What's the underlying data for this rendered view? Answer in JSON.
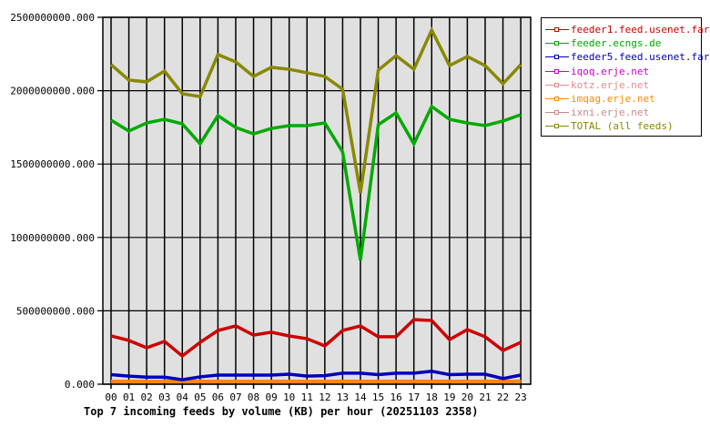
{
  "chart_data": {
    "type": "line",
    "title": "Top 7 incoming feeds by volume (KB) per hour (20251103 2358)",
    "xlabel": "",
    "ylabel": "",
    "ylim": [
      0,
      2500000000
    ],
    "yticks": [
      "0.000",
      "500000000.000",
      "1000000000.000",
      "1500000000.000",
      "2000000000.000",
      "2500000000.000"
    ],
    "ytick_values": [
      0,
      500000000,
      1000000000,
      1500000000,
      2000000000,
      2500000000
    ],
    "grid": true,
    "legend_position": "right",
    "categories": [
      "00",
      "01",
      "02",
      "03",
      "04",
      "05",
      "06",
      "07",
      "08",
      "09",
      "10",
      "11",
      "12",
      "13",
      "14",
      "15",
      "16",
      "17",
      "18",
      "19",
      "20",
      "21",
      "22",
      "23"
    ],
    "series": [
      {
        "name": "feeder1.feed.usenet.farm",
        "color": "#cc0000",
        "values": [
          329000000,
          298000000,
          248000000,
          292000000,
          192000000,
          285000000,
          366000000,
          397000000,
          335000000,
          354000000,
          329000000,
          310000000,
          261000000,
          366000000,
          397000000,
          323000000,
          323000000,
          440000000,
          434000000,
          304000000,
          372000000,
          323000000,
          230000000,
          285000000
        ]
      },
      {
        "name": "feeder.ecngs.de",
        "color": "#00aa00",
        "values": [
          1799000000,
          1725000000,
          1780000000,
          1805000000,
          1774000000,
          1638000000,
          1830000000,
          1749000000,
          1706000000,
          1743000000,
          1762000000,
          1762000000,
          1780000000,
          1582000000,
          844000000,
          1768000000,
          1849000000,
          1638000000,
          1892000000,
          1805000000,
          1780000000,
          1762000000,
          1793000000,
          1836000000
        ]
      },
      {
        "name": "feeder5.feed.usenet.farm",
        "color": "#0000bb",
        "values": [
          65000000,
          55000000,
          48000000,
          48000000,
          30000000,
          50000000,
          62000000,
          62000000,
          62000000,
          62000000,
          68000000,
          55000000,
          58000000,
          75000000,
          75000000,
          65000000,
          75000000,
          75000000,
          88000000,
          65000000,
          68000000,
          68000000,
          38000000,
          62000000
        ]
      },
      {
        "name": "iqoq.erje.net",
        "color": "#cc00cc",
        "values": [
          0,
          0,
          0,
          0,
          0,
          0,
          0,
          0,
          2000000,
          0,
          0,
          0,
          0,
          0,
          0,
          0,
          0,
          0,
          0,
          2000000,
          0,
          0,
          0,
          0
        ]
      },
      {
        "name": "kotz.erje.net",
        "color": "#ee8888",
        "values": [
          0,
          0,
          0,
          0,
          0,
          0,
          0,
          0,
          0,
          0,
          0,
          2000000,
          0,
          0,
          0,
          0,
          0,
          0,
          0,
          0,
          0,
          2000000,
          0,
          0
        ]
      },
      {
        "name": "imqag.erje.net",
        "color": "#ff8800",
        "values": [
          0,
          0,
          0,
          0,
          0,
          0,
          0,
          0,
          0,
          0,
          0,
          0,
          0,
          0,
          0,
          0,
          0,
          0,
          0,
          0,
          2000000,
          0,
          0,
          0
        ]
      },
      {
        "name": "ixni.erje.net",
        "color": "#cc8888",
        "values": [
          8000000,
          8000000,
          8000000,
          8000000,
          8000000,
          8000000,
          8000000,
          8000000,
          8000000,
          8000000,
          8000000,
          8000000,
          8000000,
          8000000,
          8000000,
          8000000,
          8000000,
          8000000,
          8000000,
          8000000,
          8000000,
          8000000,
          8000000,
          8000000
        ]
      },
      {
        "name": "TOTAL (all feeds)",
        "color": "#888800",
        "values": [
          2178000000,
          2072000000,
          2060000000,
          2134000000,
          1979000000,
          1960000000,
          2246000000,
          2196000000,
          2097000000,
          2159000000,
          2146000000,
          2122000000,
          2097000000,
          2010000000,
          1303000000,
          2140000000,
          2239000000,
          2146000000,
          2413000000,
          2171000000,
          2233000000,
          2171000000,
          2047000000,
          2178000000
        ]
      }
    ]
  },
  "legend": {
    "items": [
      {
        "label": "feeder1.feed.usenet.farm",
        "color": "#cc0000"
      },
      {
        "label": "feeder.ecngs.de",
        "color": "#00aa00"
      },
      {
        "label": "feeder5.feed.usenet.farm",
        "color": "#0000bb"
      },
      {
        "label": "iqoq.erje.net",
        "color": "#cc00cc"
      },
      {
        "label": "kotz.erje.net",
        "color": "#ee8888"
      },
      {
        "label": "imqag.erje.net",
        "color": "#ff8800"
      },
      {
        "label": "ixni.erje.net",
        "color": "#cc8888"
      },
      {
        "label": "TOTAL (all feeds)",
        "color": "#888800"
      }
    ]
  },
  "colors": {
    "plot_background": "#e0e0e0",
    "grid": "#000000",
    "background": "#ffffff"
  }
}
